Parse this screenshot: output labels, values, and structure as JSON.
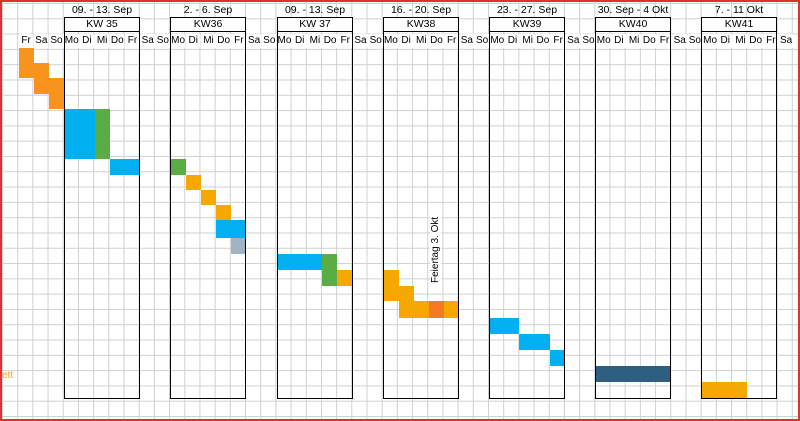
{
  "weeks": [
    {
      "date": "09. - 13. Sep",
      "kw": "KW 35"
    },
    {
      "date": "2. - 6. Sep",
      "kw": "KW36"
    },
    {
      "date": "09. - 13. Sep",
      "kw": "KW 37"
    },
    {
      "date": "16. - 20. Sep",
      "kw": "KW38"
    },
    {
      "date": "23. - 27. Sep",
      "kw": "KW39"
    },
    {
      "date": "30. Sep - 4 Okt",
      "kw": "KW40"
    },
    {
      "date": "7. - 11 Okt",
      "kw": "KW41"
    }
  ],
  "day_labels": [
    "Fr",
    "Sa",
    "So",
    "Mo",
    "Di",
    "Mi",
    "Do",
    "Fr",
    "Sa",
    "So",
    "Mo",
    "Di",
    "Mi",
    "Do",
    "Fr",
    "Sa",
    "So",
    "Mo",
    "Di",
    "Mi",
    "Do",
    "Fr",
    "Sa",
    "So",
    "Mo",
    "Di",
    "Mi",
    "Do",
    "Fr",
    "Sa",
    "So",
    "Mo",
    "Di",
    "Mi",
    "Do",
    "Fr",
    "Sa",
    "So",
    "Mo",
    "Di",
    "Mi",
    "Do",
    "Fr",
    "Sa",
    "So",
    "Mo",
    "Di",
    "Mi",
    "Do",
    "Fr",
    "Sa"
  ],
  "holiday_note": "Feiertag 3. Okt",
  "stray_text": "ett",
  "colors": {
    "orange": "#f7941d",
    "light_orange": "#fbb034",
    "cyan": "#00b0f0",
    "green": "#5aac44",
    "gray": "#9fb4c4",
    "navy": "#2d5f80",
    "gold": "#f5a800",
    "deep_orange": "#f47920"
  }
}
